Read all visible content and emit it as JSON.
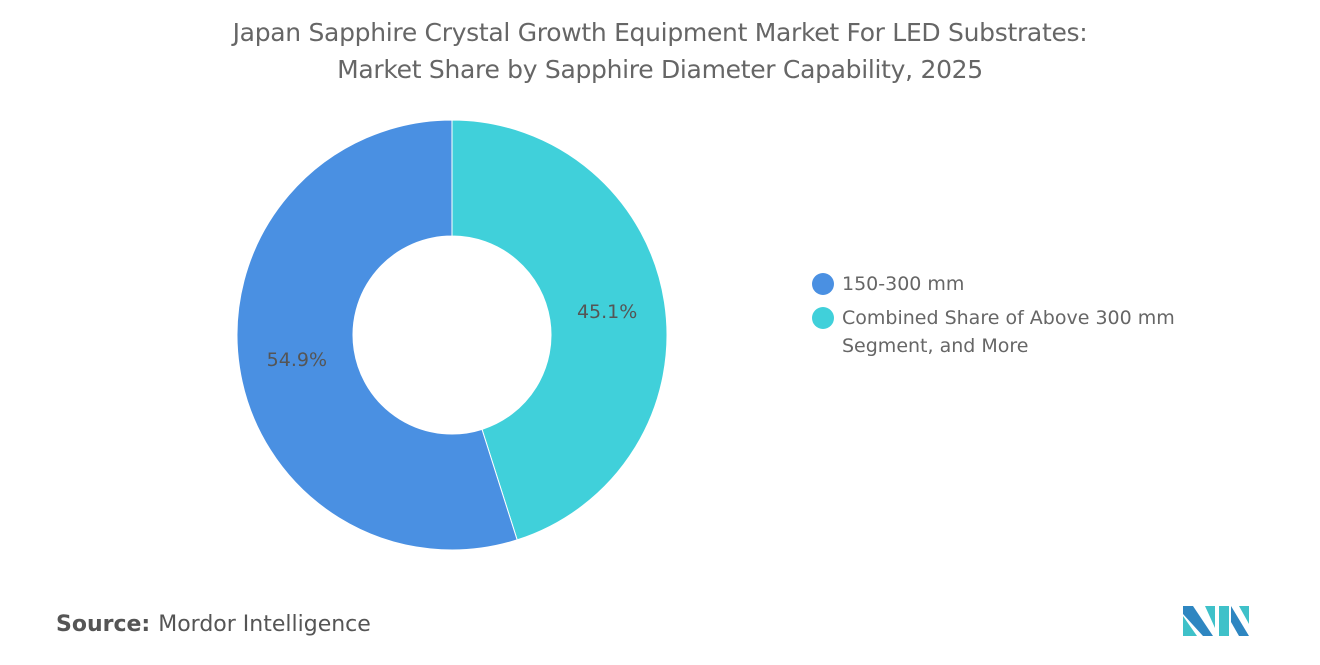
{
  "title_line1": "Japan Sapphire Crystal Growth Equipment Market For LED Substrates:",
  "title_line2": "Market Share by Sapphire Diameter Capability, 2025",
  "source_label": "Source:",
  "source_value": "Mordor Intelligence",
  "chart_data": {
    "type": "pie",
    "donut": true,
    "title": "Japan Sapphire Crystal Growth Equipment Market For LED Substrates: Market Share by Sapphire Diameter Capability, 2025",
    "legend_position": "right",
    "slices": [
      {
        "label": "Combined Share of Above 300 mm Segment, and More",
        "value": 45.1,
        "data_label": "45.1%",
        "color": "#40D0DA"
      },
      {
        "label": "150-300 mm",
        "value": 54.9,
        "data_label": "54.9%",
        "color": "#4A90E2"
      }
    ],
    "legend": [
      {
        "label": "150-300 mm",
        "color": "#4A90E2"
      },
      {
        "label": "Combined Share of Above 300 mm Segment, and More",
        "color": "#40D0DA"
      }
    ]
  }
}
